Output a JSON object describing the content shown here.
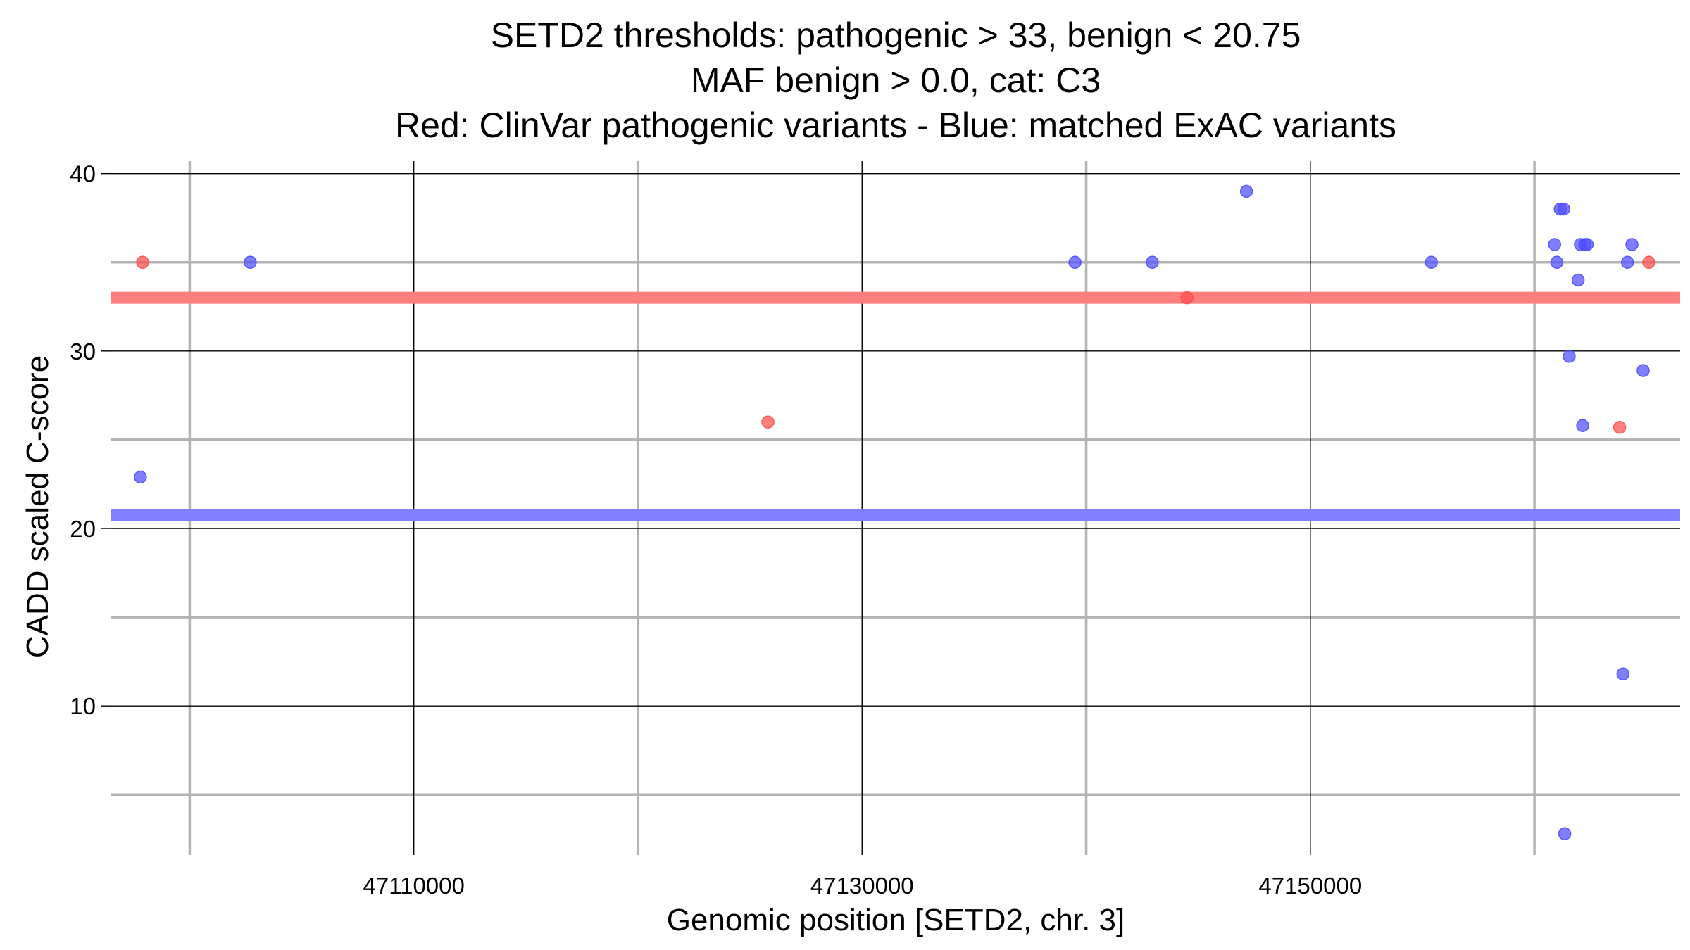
{
  "chart_data": {
    "type": "scatter",
    "title": [
      "SETD2 thresholds: pathogenic > 33, benign < 20.75",
      "MAF benign > 0.0, cat: C3",
      "Red: ClinVar pathogenic variants - Blue: matched ExAC variants"
    ],
    "xlabel": "Genomic position [SETD2, chr. 3]",
    "ylabel": "CADD scaled C-score",
    "xlim": [
      47096500,
      47166500
    ],
    "ylim": [
      1.6,
      40.7
    ],
    "x_major_ticks": [
      47110000,
      47130000,
      47150000
    ],
    "x_minor_ticks": [
      47100000,
      47120000,
      47140000,
      47160000
    ],
    "x_tick_labels": [
      "47110000",
      "47130000",
      "47150000"
    ],
    "y_major_ticks": [
      10,
      20,
      30,
      40
    ],
    "y_minor_ticks": [
      5,
      15,
      25,
      35
    ],
    "y_tick_labels": [
      "10",
      "20",
      "30",
      "40"
    ],
    "grid": true,
    "thresholds": [
      {
        "name": "pathogenic",
        "value": 33,
        "color": "#ff7f7f"
      },
      {
        "name": "benign",
        "value": 20.75,
        "color": "#7f7fff"
      }
    ],
    "series": [
      {
        "name": "ClinVar pathogenic variants",
        "color": "#ff4d4d",
        "points": [
          {
            "x": 47097900,
            "y": 35
          },
          {
            "x": 47125800,
            "y": 26
          },
          {
            "x": 47144500,
            "y": 33
          },
          {
            "x": 47165100,
            "y": 35
          },
          {
            "x": 47163800,
            "y": 25.7
          }
        ]
      },
      {
        "name": "matched ExAC variants",
        "color": "#4d4dff",
        "points": [
          {
            "x": 47097800,
            "y": 22.9
          },
          {
            "x": 47102700,
            "y": 35
          },
          {
            "x": 47139500,
            "y": 35
          },
          {
            "x": 47142950,
            "y": 35
          },
          {
            "x": 47147150,
            "y": 39
          },
          {
            "x": 47155400,
            "y": 35
          },
          {
            "x": 47160900,
            "y": 36
          },
          {
            "x": 47161000,
            "y": 35
          },
          {
            "x": 47161150,
            "y": 38
          },
          {
            "x": 47161300,
            "y": 38
          },
          {
            "x": 47161550,
            "y": 29.7
          },
          {
            "x": 47161950,
            "y": 34
          },
          {
            "x": 47162050,
            "y": 36
          },
          {
            "x": 47162150,
            "y": 25.8
          },
          {
            "x": 47162250,
            "y": 36
          },
          {
            "x": 47162350,
            "y": 36
          },
          {
            "x": 47163950,
            "y": 11.8
          },
          {
            "x": 47164150,
            "y": 35
          },
          {
            "x": 47164350,
            "y": 36
          },
          {
            "x": 47164850,
            "y": 28.9
          },
          {
            "x": 47161350,
            "y": 2.8
          }
        ]
      }
    ]
  }
}
